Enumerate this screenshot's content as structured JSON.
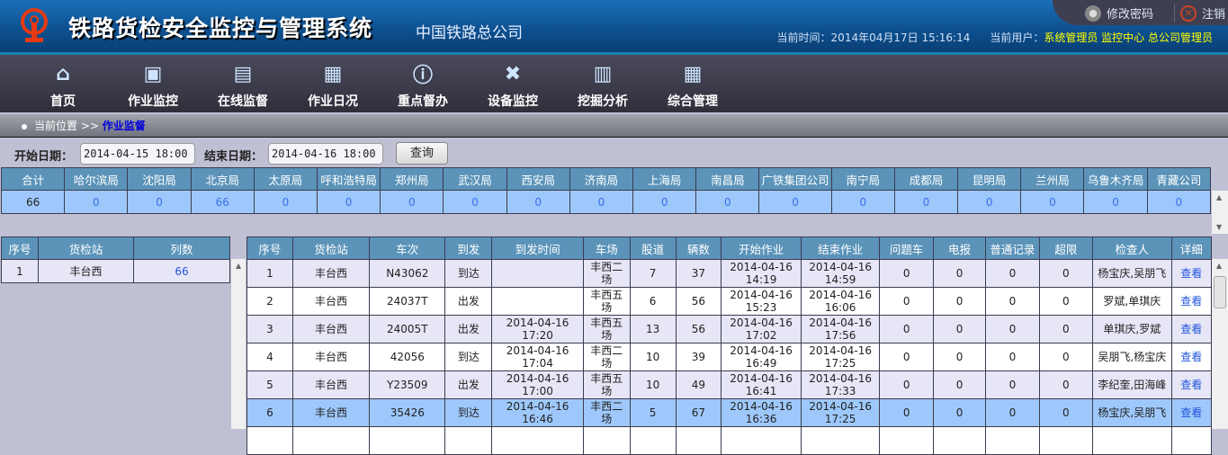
{
  "header": {
    "title": "铁路货检安全监控与管理系统",
    "org": "中国铁路总公司",
    "change_password": "修改密码",
    "logout": "注销",
    "time_label": "当前时间：",
    "time": "2014年04月17日 15:16:14",
    "user_label": "当前用户：",
    "user": "系统管理员 监控中心 总公司管理员"
  },
  "nav": [
    {
      "label": "首页",
      "icon": "home-icon"
    },
    {
      "label": "作业监控",
      "icon": "monitor-icon"
    },
    {
      "label": "在线监督",
      "icon": "clipboard-icon"
    },
    {
      "label": "作业日况",
      "icon": "cart-icon"
    },
    {
      "label": "重点督办",
      "icon": "info-icon"
    },
    {
      "label": "设备监控",
      "icon": "tools-icon"
    },
    {
      "label": "挖掘分析",
      "icon": "chart-icon"
    },
    {
      "label": "综合管理",
      "icon": "grid-icon"
    }
  ],
  "breadcrumb": {
    "label": "当前位置 >> ",
    "current": "作业监督"
  },
  "query": {
    "start_label": "开始日期：",
    "start": "2014-04-15 18:00",
    "end_label": "结束日期：",
    "end": "2014-04-16 18:00",
    "button": "查询"
  },
  "summary": {
    "headers": [
      "合计",
      "哈尔滨局",
      "沈阳局",
      "北京局",
      "太原局",
      "呼和浩特局",
      "郑州局",
      "武汉局",
      "西安局",
      "济南局",
      "上海局",
      "南昌局",
      "广铁集团公司",
      "南宁局",
      "成都局",
      "昆明局",
      "兰州局",
      "乌鲁木齐局",
      "青藏公司"
    ],
    "values": [
      "66",
      "0",
      "0",
      "66",
      "0",
      "0",
      "0",
      "0",
      "0",
      "0",
      "0",
      "0",
      "0",
      "0",
      "0",
      "0",
      "0",
      "0",
      "0"
    ]
  },
  "stations": {
    "headers": [
      "序号",
      "货检站",
      "列数"
    ],
    "rows": [
      [
        "1",
        "丰台西",
        "66"
      ]
    ]
  },
  "trains": {
    "headers": [
      "序号",
      "货检站",
      "车次",
      "到发",
      "到发时间",
      "车场",
      "股道",
      "辆数",
      "开始作业",
      "结束作业",
      "问题车",
      "电报",
      "普通记录",
      "超限",
      "检查人",
      "详细"
    ],
    "rows": [
      [
        "1",
        "丰台西",
        "N43062",
        "到达",
        "",
        "丰西二场",
        "7",
        "37",
        "2014-04-16 14:19",
        "2014-04-16 14:59",
        "0",
        "0",
        "0",
        "0",
        "杨宝庆,吴朋飞",
        "查看"
      ],
      [
        "2",
        "丰台西",
        "24037T",
        "出发",
        "",
        "丰西五场",
        "6",
        "56",
        "2014-04-16 15:23",
        "2014-04-16 16:06",
        "0",
        "0",
        "0",
        "0",
        "罗斌,单琪庆",
        "查看"
      ],
      [
        "3",
        "丰台西",
        "24005T",
        "出发",
        "2014-04-16 17:20",
        "丰西五场",
        "13",
        "56",
        "2014-04-16 17:02",
        "2014-04-16 17:56",
        "0",
        "0",
        "0",
        "0",
        "单琪庆,罗斌",
        "查看"
      ],
      [
        "4",
        "丰台西",
        "42056",
        "到达",
        "2014-04-16 17:04",
        "丰西二场",
        "10",
        "39",
        "2014-04-16 16:49",
        "2014-04-16 17:25",
        "0",
        "0",
        "0",
        "0",
        "吴朋飞,杨宝庆",
        "查看"
      ],
      [
        "5",
        "丰台西",
        "Y23509",
        "出发",
        "2014-04-16 17:00",
        "丰西五场",
        "10",
        "49",
        "2014-04-16 16:41",
        "2014-04-16 17:33",
        "0",
        "0",
        "0",
        "0",
        "李纪奎,田海峰",
        "查看"
      ],
      [
        "6",
        "丰台西",
        "35426",
        "到达",
        "2014-04-16 16:46",
        "丰西二场",
        "5",
        "67",
        "2014-04-16 16:36",
        "2014-04-16 17:25",
        "0",
        "0",
        "0",
        "0",
        "杨宝庆,吴朋飞",
        "查看"
      ]
    ],
    "selected_row": 6
  },
  "colors": {
    "header_blue": "#0d4f8e",
    "table_header": "#5b93b9",
    "selected": "#9ec8fb",
    "link": "#2255dd",
    "user_yellow": "#ffff00"
  }
}
